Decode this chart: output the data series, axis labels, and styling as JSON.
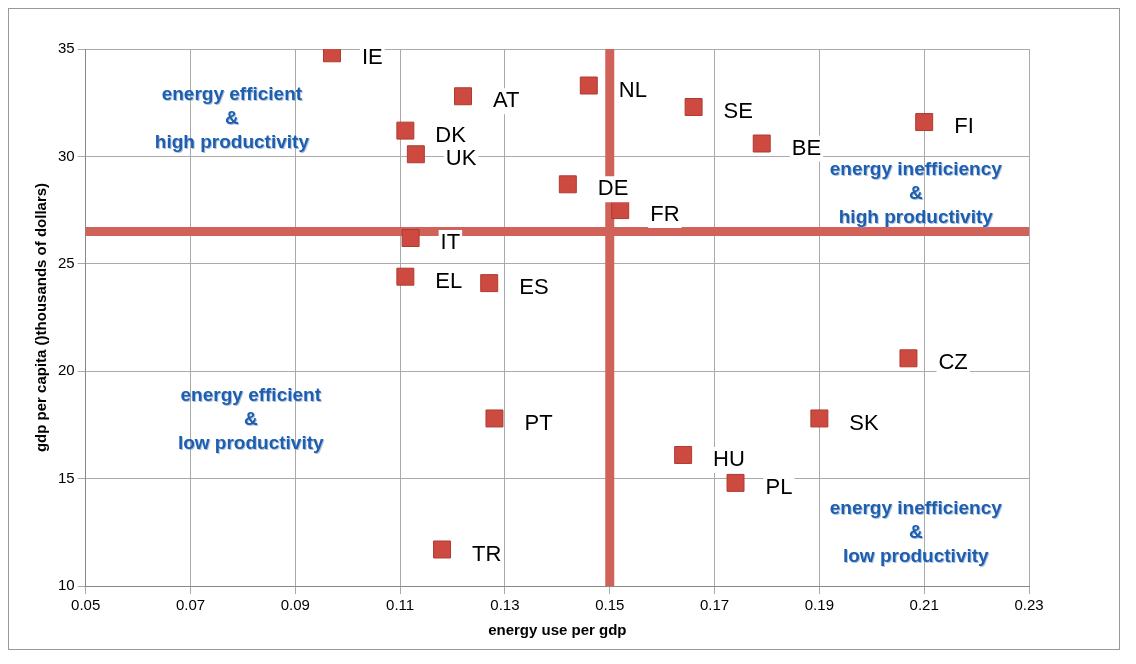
{
  "chart_data": {
    "type": "scatter",
    "xlabel": "energy use per gdp",
    "ylabel": "gdp per capita ()thousands of dollars)",
    "x": [
      0.097,
      0.122,
      0.146,
      0.166,
      0.21,
      0.111,
      0.113,
      0.179,
      0.142,
      0.152,
      0.112,
      0.111,
      0.127,
      0.207,
      0.128,
      0.19,
      0.164,
      0.174,
      0.118
    ],
    "series": [
      {
        "color": "#cc4a40",
        "values": [
          34.8,
          32.8,
          33.3,
          32.3,
          31.6,
          31.2,
          30.1,
          30.6,
          28.7,
          27.5,
          26.2,
          24.4,
          24.1,
          20.6,
          17.8,
          17.8,
          16.1,
          14.8,
          11.7
        ],
        "value_labels": [
          "IE",
          "AT",
          "NL",
          "SE",
          "FI",
          "DK",
          "UK",
          "BE",
          "DE",
          "FR",
          "IT",
          "EL",
          "ES",
          "CZ",
          "PT",
          "SK",
          "HU",
          "PL",
          "TR"
        ]
      }
    ],
    "xlim": [
      0.05,
      0.23
    ],
    "xticks": [
      0.05,
      0.07,
      0.09,
      0.11,
      0.13,
      0.15,
      0.17,
      0.19,
      0.21,
      0.23
    ],
    "ylim": [
      10,
      35
    ],
    "yticks": [
      10,
      15,
      20,
      25,
      30,
      35
    ],
    "ref_lines": [
      {
        "axis": "x",
        "value": 0.15,
        "color": "#d0625a"
      },
      {
        "axis": "y",
        "value": 26.5,
        "color": "#d0625a"
      }
    ],
    "annotations": [
      "energy efficient\n&\nhigh productivity",
      "energy inefficiency\n&\nhigh productivity",
      "energy efficient\n&\nlow productivity",
      "energy inefficiency\n&\nlow productivity"
    ],
    "grid": true,
    "marker": "square",
    "legend": false
  }
}
